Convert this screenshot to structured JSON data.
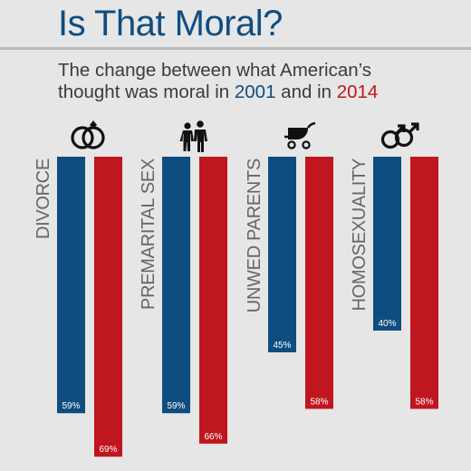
{
  "title": "Is That Moral?",
  "subtitle": {
    "line1": "The change between what American’s",
    "line2_prefix": "thought was moral in ",
    "year1": "2001",
    "line2_mid": " and in ",
    "year2": "2014"
  },
  "colors": {
    "series_2001": "#0f4d80",
    "series_2014": "#c0161f"
  },
  "chart_data": {
    "type": "bar",
    "title": "Is That Moral?",
    "categories": [
      "DIVORCE",
      "PREMARITAL SEX",
      "UNWED PARENTS",
      "HOMOSEXUALITY"
    ],
    "icons": [
      "wedding-rings-icon",
      "couple-icon",
      "baby-carriage-icon",
      "male-male-symbol-icon"
    ],
    "series": [
      {
        "name": "2001",
        "values": [
          59,
          59,
          45,
          40
        ],
        "labels": [
          "59%",
          "59%",
          "45%",
          "40%"
        ]
      },
      {
        "name": "2014",
        "values": [
          69,
          66,
          58,
          58
        ],
        "labels": [
          "69%",
          "66%",
          "58%",
          "58%"
        ]
      }
    ],
    "ylim": [
      0,
      100
    ],
    "grid": false,
    "legend": "none"
  }
}
